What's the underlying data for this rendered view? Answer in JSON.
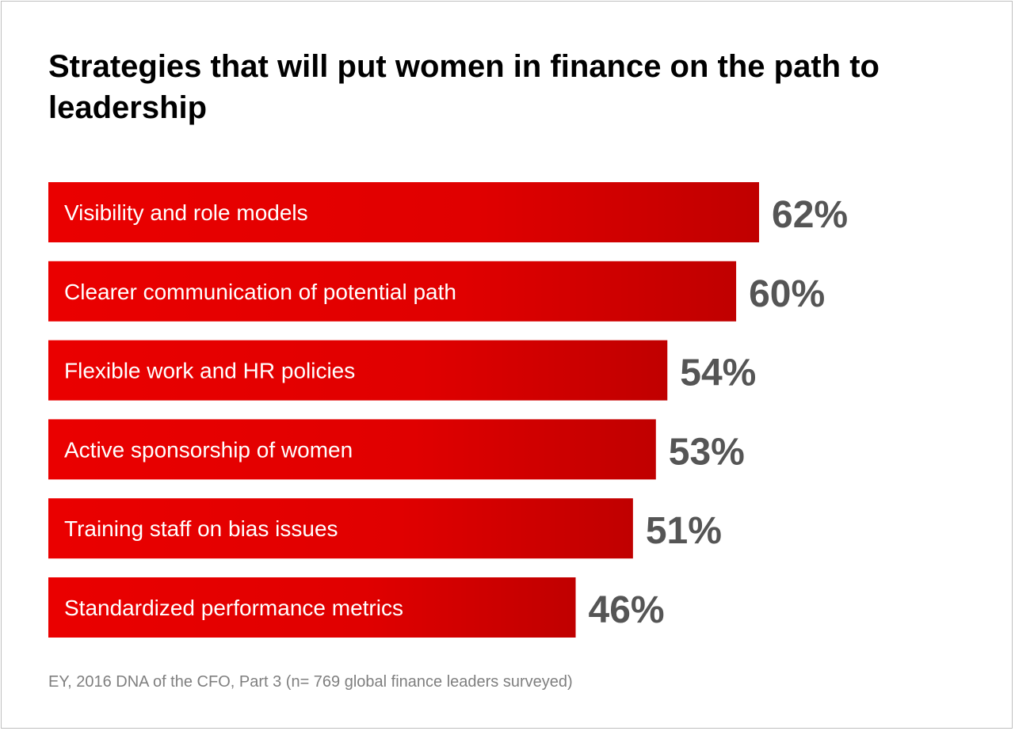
{
  "colors": {
    "bar_dark": "#c00000",
    "bar_bright": "#ea0000",
    "bar_text": "#ffffff",
    "value_text": "#555555",
    "title_text": "#000000",
    "source_text": "#7f7f7f",
    "frame_border": "#bfbfbf"
  },
  "chart_data": {
    "type": "bar",
    "orientation": "horizontal",
    "title": "Strategies that will put women in finance on the path to leadership",
    "categories": [
      "Visibility and role models",
      "Clearer communication of potential path",
      "Flexible work and HR policies",
      "Active sponsorship of women",
      "Training staff on bias issues",
      "Standardized performance metrics"
    ],
    "values": [
      62,
      60,
      54,
      53,
      51,
      46
    ],
    "value_labels": [
      "62%",
      "60%",
      "54%",
      "53%",
      "51%",
      "46%"
    ],
    "unit": "%",
    "grid": false,
    "legend": "none"
  },
  "source": "EY, 2016 DNA of the CFO, Part 3 (n= 769 global finance leaders surveyed)"
}
